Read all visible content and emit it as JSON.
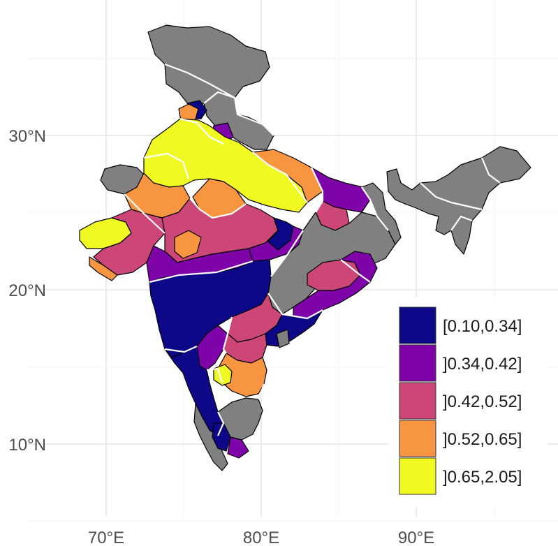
{
  "axes": {
    "x_ticks": [
      {
        "label": "70°E",
        "lon": 70
      },
      {
        "label": "80°E",
        "lon": 80
      },
      {
        "label": "90°E",
        "lon": 90
      }
    ],
    "y_ticks": [
      {
        "label": "30°N",
        "lat": 30
      },
      {
        "label": "20°N",
        "lat": 20
      },
      {
        "label": "10°N",
        "lat": 10
      }
    ]
  },
  "legend": {
    "placement": "bottom-right",
    "items": [
      {
        "label": "[0.10,0.34]",
        "color": "#0d0887"
      },
      {
        "label": "]0.34,0.42]",
        "color": "#7e03a8"
      },
      {
        "label": "]0.42,0.52]",
        "color": "#cc4778"
      },
      {
        "label": "]0.52,0.65]",
        "color": "#f89540"
      },
      {
        "label": "]0.65,2.05]",
        "color": "#f0f921"
      }
    ]
  },
  "colors": {
    "no_data": "#808080",
    "district_border": "#000000",
    "state_border": "#ffffff",
    "grid": "#ebebeb"
  }
}
